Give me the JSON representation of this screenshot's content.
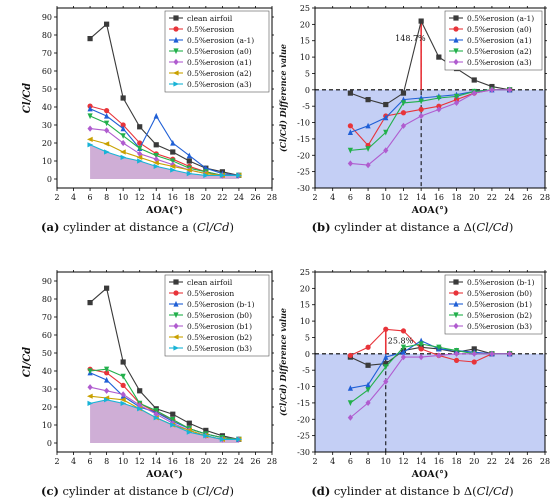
{
  "captions": [
    {
      "letter": "(a)",
      "text": " cylinder at distance a (",
      "ital": "Cl/Cd",
      "end": ")"
    },
    {
      "letter": "(b)",
      "text": " cylinder at distance a Δ(",
      "ital": "Cl/Cd",
      "end": ")"
    },
    {
      "letter": "(c)",
      "text": " cylinder at distance b (",
      "ital": "Cl/Cd",
      "end": ")"
    },
    {
      "letter": "(d)",
      "text": " cylinder at distance b Δ(",
      "ital": "Cl/Cd",
      "end": ")"
    }
  ],
  "chart_data": [
    {
      "type": "line",
      "panel": "a",
      "xlabel": "AOA(°)",
      "ylabel": "Cl/Cd",
      "xlim": [
        2,
        28
      ],
      "ylim": [
        -5,
        95
      ],
      "xticks": [
        2,
        4,
        6,
        8,
        10,
        12,
        14,
        16,
        18,
        20,
        22,
        24,
        26,
        28
      ],
      "yticks": [
        0,
        10,
        20,
        30,
        40,
        50,
        60,
        70,
        80,
        90
      ],
      "x": [
        6,
        8,
        10,
        12,
        14,
        16,
        18,
        20,
        22,
        24
      ],
      "fill_series": "0.5%erosion (a3)",
      "fill_color": "#c7a0cf",
      "legend_position": "top-right",
      "series": [
        {
          "name": "clean airfoil",
          "color": "#3a3a3a",
          "marker": "square",
          "values": [
            78,
            86,
            45,
            29,
            19,
            15,
            10,
            6,
            4,
            2
          ]
        },
        {
          "name": "0.5%erosion",
          "color": "#e8343a",
          "marker": "circle",
          "values": [
            40.5,
            38,
            30,
            20,
            14,
            11,
            7,
            4,
            2,
            2
          ]
        },
        {
          "name": "0.5%erosion (a-1)",
          "color": "#1f5fd6",
          "marker": "triangle-up",
          "values": [
            39,
            35,
            28,
            17,
            35,
            20,
            13,
            6,
            3,
            2
          ]
        },
        {
          "name": "0.5%erosion (a0)",
          "color": "#22b04b",
          "marker": "triangle-down",
          "values": [
            35,
            31,
            24,
            17,
            13,
            10,
            6,
            4,
            2,
            2
          ]
        },
        {
          "name": "0.5%erosion (a1)",
          "color": "#b05ccf",
          "marker": "diamond",
          "values": [
            28,
            27,
            20,
            14,
            11,
            8,
            5,
            3,
            2,
            2
          ]
        },
        {
          "name": "0.5%erosion (a2)",
          "color": "#c9a100",
          "marker": "triangle-left",
          "values": [
            22,
            19.5,
            15,
            12,
            9,
            7,
            5,
            3,
            2,
            2
          ]
        },
        {
          "name": "0.5%erosion (a3)",
          "color": "#19b3d6",
          "marker": "triangle-right",
          "values": [
            19,
            15,
            12,
            10,
            7,
            5,
            3,
            2,
            2,
            2
          ]
        }
      ]
    },
    {
      "type": "line",
      "panel": "b",
      "xlabel": "AOA(°)",
      "ylabel": "(Cl/Cd) Difference value",
      "xlim": [
        2,
        28
      ],
      "ylim": [
        -30,
        25
      ],
      "xticks": [
        2,
        4,
        6,
        8,
        10,
        12,
        14,
        16,
        18,
        20,
        22,
        24,
        26,
        28
      ],
      "yticks": [
        -30,
        -25,
        -20,
        -15,
        -10,
        -5,
        0,
        5,
        10,
        15,
        20,
        25
      ],
      "x": [
        6,
        8,
        10,
        12,
        14,
        16,
        18,
        20,
        22,
        24
      ],
      "shade_below_zero": "#c4cff5",
      "annotation": {
        "text": "148.7%",
        "x": 14,
        "y": 21
      },
      "legend_position": "top-right",
      "series": [
        {
          "name": "0.5%erosion (a-1)",
          "color": "#3a3a3a",
          "marker": "square",
          "values": [
            -1,
            -3,
            -4.5,
            -1,
            21,
            10,
            6.5,
            3,
            1,
            0
          ]
        },
        {
          "name": "0.5%erosion (a0)",
          "color": "#e8343a",
          "marker": "circle",
          "values": [
            -11,
            -17,
            -8,
            -7,
            -6,
            -5,
            -3,
            -1,
            0,
            0
          ]
        },
        {
          "name": "0.5%erosion (a1)",
          "color": "#1f5fd6",
          "marker": "triangle-up",
          "values": [
            -13,
            -11,
            -8.5,
            -3,
            -2.5,
            -2,
            -1.5,
            -0.5,
            0,
            0
          ]
        },
        {
          "name": "0.5%erosion (a2)",
          "color": "#22b04b",
          "marker": "triangle-down",
          "values": [
            -18.5,
            -18,
            -13,
            -4,
            -3.5,
            -2.5,
            -2,
            -0.5,
            0,
            0
          ]
        },
        {
          "name": "0.5%erosion (a3)",
          "color": "#b05ccf",
          "marker": "diamond",
          "values": [
            -22.5,
            -23,
            -18.5,
            -11,
            -8,
            -6,
            -4,
            -1,
            0,
            0
          ]
        }
      ]
    },
    {
      "type": "line",
      "panel": "c",
      "xlabel": "AOA(°)",
      "ylabel": "Cl/Cd",
      "xlim": [
        2,
        28
      ],
      "ylim": [
        -5,
        95
      ],
      "xticks": [
        2,
        4,
        6,
        8,
        10,
        12,
        14,
        16,
        18,
        20,
        22,
        24,
        26,
        28
      ],
      "yticks": [
        0,
        10,
        20,
        30,
        40,
        50,
        60,
        70,
        80,
        90
      ],
      "x": [
        6,
        8,
        10,
        12,
        14,
        16,
        18,
        20,
        22,
        24
      ],
      "fill_series": "0.5%erosion (b3)",
      "fill_color": "#c7a0cf",
      "legend_position": "top-right",
      "series": [
        {
          "name": "clean airfoil",
          "color": "#3a3a3a",
          "marker": "square",
          "values": [
            78,
            86,
            45,
            29,
            19,
            16,
            11,
            7,
            4,
            2
          ]
        },
        {
          "name": "0.5%erosion",
          "color": "#e8343a",
          "marker": "circle",
          "values": [
            41,
            39,
            32,
            22,
            17,
            13,
            8,
            5,
            3,
            2
          ]
        },
        {
          "name": "0.5%erosion (b-1)",
          "color": "#1f5fd6",
          "marker": "triangle-up",
          "values": [
            39,
            35,
            26,
            20,
            17,
            12,
            8,
            5,
            3,
            2
          ]
        },
        {
          "name": "0.5%erosion (b0)",
          "color": "#22b04b",
          "marker": "triangle-down",
          "values": [
            40,
            41,
            37,
            22,
            18,
            13,
            8,
            5,
            3,
            2
          ]
        },
        {
          "name": "0.5%erosion (b1)",
          "color": "#b05ccf",
          "marker": "diamond",
          "values": [
            31,
            29,
            27,
            21,
            16,
            11,
            7,
            4,
            2,
            2
          ]
        },
        {
          "name": "0.5%erosion (b2)",
          "color": "#c9a100",
          "marker": "triangle-left",
          "values": [
            26,
            25,
            24,
            19,
            14,
            10,
            7,
            4,
            2,
            2
          ]
        },
        {
          "name": "0.5%erosion (b3)",
          "color": "#19b3d6",
          "marker": "triangle-right",
          "values": [
            22,
            24,
            22,
            19,
            14,
            10,
            6,
            4,
            2,
            2
          ]
        }
      ]
    },
    {
      "type": "line",
      "panel": "d",
      "xlabel": "AOA(°)",
      "ylabel": "(Cl/Cd) Difference value",
      "xlim": [
        2,
        28
      ],
      "ylim": [
        -30,
        25
      ],
      "xticks": [
        2,
        4,
        6,
        8,
        10,
        12,
        14,
        16,
        18,
        20,
        22,
        24,
        26,
        28
      ],
      "yticks": [
        -30,
        -25,
        -20,
        -15,
        -10,
        -5,
        0,
        5,
        10,
        15,
        20,
        25
      ],
      "x": [
        6,
        8,
        10,
        12,
        14,
        16,
        18,
        20,
        22,
        24
      ],
      "shade_below_zero": "#c4cff5",
      "annotation": {
        "text": "25.8%",
        "x": 10,
        "y": 7.5
      },
      "legend_position": "top-right",
      "series": [
        {
          "name": "0.5%erosion (b-1)",
          "color": "#3a3a3a",
          "marker": "square",
          "values": [
            -1,
            -3.5,
            -3,
            1,
            2,
            1.5,
            0.5,
            1.5,
            0,
            0
          ]
        },
        {
          "name": "0.5%erosion (b0)",
          "color": "#e8343a",
          "marker": "circle",
          "values": [
            -0.5,
            2,
            7.5,
            7,
            1.5,
            -0.5,
            -2,
            -2.5,
            0,
            0
          ]
        },
        {
          "name": "0.5%erosion (b1)",
          "color": "#1f5fd6",
          "marker": "triangle-up",
          "values": [
            -10.5,
            -9.5,
            -1,
            0.5,
            4,
            1.5,
            1,
            0.5,
            0,
            0
          ]
        },
        {
          "name": "0.5%erosion (b2)",
          "color": "#22b04b",
          "marker": "triangle-down",
          "values": [
            -15,
            -11,
            -4,
            2,
            3,
            2,
            1,
            0,
            0,
            0
          ]
        },
        {
          "name": "0.5%erosion (b3)",
          "color": "#b05ccf",
          "marker": "diamond",
          "values": [
            -19.5,
            -15,
            -8.5,
            -1,
            -1,
            -0.5,
            0,
            0,
            0,
            0
          ]
        }
      ]
    }
  ]
}
